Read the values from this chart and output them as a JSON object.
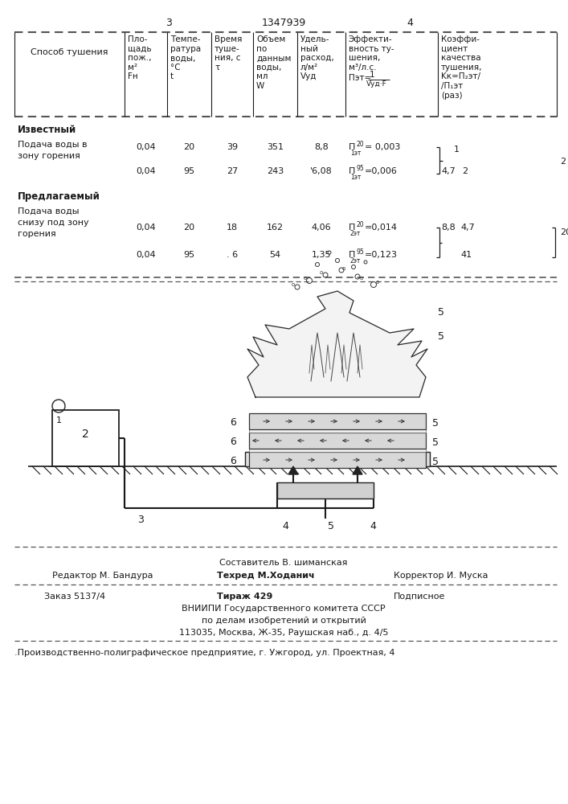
{
  "page_num_left": "3",
  "page_num_center": "1347939",
  "page_num_right": "4",
  "section1_label": "Известный",
  "section1_sub1": "Подача воды в",
  "section1_sub2": "зону горения",
  "section2_label": "Предлагаемый",
  "section2_sub1": "Подача воды",
  "section2_sub2": "снизу под зону",
  "section2_sub3": "горения",
  "footer_line1": "Составитель В. шиманская",
  "footer_line2_left": "Редактор М. Бандура",
  "footer_line2_mid": "Техред М.Ходанич",
  "footer_line2_right": "Корректор И. Муска",
  "footer_line3_left": "Заказ 5137/4",
  "footer_line3_mid": "Тираж 429",
  "footer_line3_right": "Подписное",
  "footer_line4": "ВНИИПИ Государственного комитета СССР",
  "footer_line5": "по делам изобретений и открытий",
  "footer_line6": "113035, Москва, Ж-35, Раушская наб., д. 4/5",
  "footer_line7": ".Производственно-полиграфическое предприятие, г. Ужгород, ул. Проектная, 4",
  "bg_color": "#ffffff",
  "text_color": "#1a1a1a",
  "dash_color": "#555555"
}
